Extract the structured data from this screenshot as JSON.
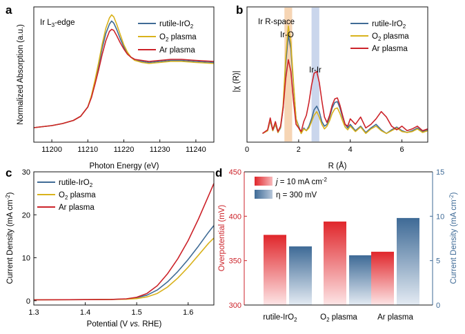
{
  "colors": {
    "rutile": "#3f6b95",
    "o2": "#d9b21b",
    "ar": "#cc2229",
    "bar_red": "#e0262b",
    "bar_blue": "#3e6a96",
    "band_orange": "#f3c79b",
    "band_blue": "#b8c8e6"
  },
  "chart_data": [
    {
      "panel": "a",
      "type": "line",
      "annotation": "Ir L3-edge",
      "xlabel": "Photon Energy (eV)",
      "ylabel": "Normalized Absorption (a.u.)",
      "xlim": [
        11195,
        11245
      ],
      "xticks": [
        11200,
        11210,
        11220,
        11230,
        11240
      ],
      "legend_position": "top-right",
      "series": [
        {
          "name": "rutile-IrO2",
          "color_key": "rutile",
          "x": [
            11195,
            11200,
            11203,
            11206,
            11208,
            11210,
            11211,
            11212,
            11213,
            11214,
            11215,
            11216,
            11216.6,
            11217.2,
            11218,
            11219,
            11220,
            11221,
            11222,
            11223,
            11225,
            11227,
            11230,
            11233,
            11236,
            11240,
            11245
          ],
          "y": [
            0.02,
            0.04,
            0.06,
            0.09,
            0.13,
            0.22,
            0.32,
            0.46,
            0.62,
            0.79,
            0.93,
            1.02,
            1.05,
            1.03,
            0.97,
            0.88,
            0.8,
            0.74,
            0.7,
            0.68,
            0.66,
            0.65,
            0.66,
            0.67,
            0.67,
            0.66,
            0.65
          ]
        },
        {
          "name": "O2 plasma",
          "color_key": "o2",
          "x": [
            11195,
            11200,
            11203,
            11206,
            11208,
            11210,
            11211,
            11212,
            11213,
            11214,
            11215,
            11216,
            11216.6,
            11217.2,
            11218,
            11219,
            11220,
            11221,
            11222,
            11223,
            11225,
            11227,
            11230,
            11233,
            11236,
            11240,
            11245
          ],
          "y": [
            0.02,
            0.04,
            0.06,
            0.09,
            0.13,
            0.22,
            0.33,
            0.48,
            0.65,
            0.83,
            0.98,
            1.08,
            1.11,
            1.09,
            1.02,
            0.92,
            0.82,
            0.75,
            0.7,
            0.67,
            0.65,
            0.64,
            0.65,
            0.66,
            0.66,
            0.65,
            0.64
          ]
        },
        {
          "name": "Ar plasma",
          "color_key": "ar",
          "x": [
            11195,
            11200,
            11203,
            11206,
            11208,
            11210,
            11211,
            11212,
            11213,
            11214,
            11215,
            11216,
            11216.6,
            11217.2,
            11218,
            11219,
            11220,
            11221,
            11222,
            11223,
            11225,
            11227,
            11230,
            11233,
            11236,
            11240,
            11245
          ],
          "y": [
            0.02,
            0.04,
            0.06,
            0.09,
            0.13,
            0.22,
            0.31,
            0.44,
            0.58,
            0.73,
            0.86,
            0.95,
            0.97,
            0.96,
            0.91,
            0.84,
            0.78,
            0.73,
            0.7,
            0.68,
            0.67,
            0.66,
            0.67,
            0.68,
            0.68,
            0.67,
            0.66
          ]
        }
      ]
    },
    {
      "panel": "b",
      "type": "line",
      "annotation": "Ir R-space",
      "peak_labels": [
        "Ir-O",
        "Ir-Ir"
      ],
      "xlabel": "R (Å)",
      "ylabel": "|χ (R)|",
      "xlim": [
        0,
        7
      ],
      "xticks": [
        0,
        2,
        4,
        6
      ],
      "bands": [
        {
          "x": [
            1.45,
            1.75
          ],
          "color_key": "band_orange"
        },
        {
          "x": [
            2.5,
            2.8
          ],
          "color_key": "band_blue"
        }
      ],
      "legend_position": "top-right",
      "series": [
        {
          "name": "rutile-IrO2",
          "color_key": "rutile",
          "x": [
            0.6,
            0.8,
            0.9,
            1.0,
            1.1,
            1.2,
            1.3,
            1.4,
            1.5,
            1.6,
            1.7,
            1.8,
            1.9,
            2.0,
            2.1,
            2.2,
            2.3,
            2.4,
            2.5,
            2.6,
            2.7,
            2.8,
            2.9,
            3.0,
            3.1,
            3.2,
            3.3,
            3.4,
            3.5,
            3.6,
            3.7,
            3.8,
            3.9,
            4.0,
            4.2,
            4.4,
            4.6,
            4.8,
            5.0,
            5.2,
            5.4,
            5.6,
            5.8,
            6.0,
            6.2,
            6.4,
            6.6,
            6.8,
            7.0
          ],
          "y": [
            0.02,
            0.05,
            0.16,
            0.05,
            0.12,
            0.03,
            0.08,
            0.3,
            0.78,
            1.1,
            0.95,
            0.55,
            0.18,
            0.1,
            0.02,
            0.08,
            0.05,
            0.1,
            0.18,
            0.28,
            0.32,
            0.26,
            0.15,
            0.1,
            0.12,
            0.2,
            0.3,
            0.36,
            0.37,
            0.3,
            0.2,
            0.12,
            0.08,
            0.12,
            0.05,
            0.1,
            0.03,
            0.08,
            0.12,
            0.06,
            0.02,
            0.06,
            0.09,
            0.05,
            0.03,
            0.05,
            0.08,
            0.04,
            0.06
          ]
        },
        {
          "name": "O2 plasma",
          "color_key": "o2",
          "x": [
            0.6,
            0.8,
            0.9,
            1.0,
            1.1,
            1.2,
            1.3,
            1.4,
            1.5,
            1.6,
            1.7,
            1.8,
            1.9,
            2.0,
            2.1,
            2.2,
            2.3,
            2.4,
            2.5,
            2.6,
            2.7,
            2.8,
            2.9,
            3.0,
            3.1,
            3.2,
            3.3,
            3.4,
            3.5,
            3.6,
            3.7,
            3.8,
            3.9,
            4.0,
            4.2,
            4.4,
            4.6,
            4.8,
            5.0,
            5.2,
            5.4,
            5.6,
            5.8,
            6.0,
            6.2,
            6.4,
            6.6,
            6.8,
            7.0
          ],
          "y": [
            0.02,
            0.05,
            0.17,
            0.05,
            0.13,
            0.03,
            0.09,
            0.33,
            0.85,
            1.2,
            1.02,
            0.58,
            0.18,
            0.08,
            0.02,
            0.07,
            0.05,
            0.08,
            0.15,
            0.22,
            0.26,
            0.2,
            0.12,
            0.07,
            0.1,
            0.16,
            0.24,
            0.29,
            0.3,
            0.24,
            0.16,
            0.09,
            0.06,
            0.1,
            0.04,
            0.09,
            0.02,
            0.07,
            0.1,
            0.05,
            0.02,
            0.05,
            0.08,
            0.04,
            0.03,
            0.04,
            0.07,
            0.03,
            0.05
          ]
        },
        {
          "name": "Ar plasma",
          "color_key": "ar",
          "x": [
            0.6,
            0.8,
            0.9,
            1.0,
            1.1,
            1.2,
            1.3,
            1.4,
            1.5,
            1.6,
            1.7,
            1.8,
            1.9,
            2.0,
            2.1,
            2.2,
            2.3,
            2.4,
            2.5,
            2.6,
            2.7,
            2.8,
            2.9,
            3.0,
            3.1,
            3.2,
            3.3,
            3.4,
            3.5,
            3.6,
            3.7,
            3.8,
            3.9,
            4.0,
            4.2,
            4.4,
            4.6,
            4.8,
            5.0,
            5.2,
            5.4,
            5.6,
            5.8,
            6.0,
            6.2,
            6.4,
            6.6,
            6.8,
            7.0
          ],
          "y": [
            0.02,
            0.06,
            0.19,
            0.06,
            0.15,
            0.04,
            0.1,
            0.3,
            0.62,
            0.83,
            0.7,
            0.38,
            0.12,
            0.08,
            0.04,
            0.15,
            0.22,
            0.36,
            0.55,
            0.68,
            0.7,
            0.58,
            0.38,
            0.2,
            0.14,
            0.22,
            0.33,
            0.4,
            0.41,
            0.33,
            0.22,
            0.12,
            0.1,
            0.18,
            0.12,
            0.2,
            0.08,
            0.12,
            0.18,
            0.26,
            0.2,
            0.1,
            0.06,
            0.1,
            0.05,
            0.07,
            0.1,
            0.05,
            0.07
          ]
        }
      ]
    },
    {
      "panel": "c",
      "type": "line",
      "xlabel": "Potential (V vs. RHE)",
      "ylabel": "Current Density (mA cm-2)",
      "xlim": [
        1.3,
        1.65
      ],
      "ylim": [
        -1,
        30
      ],
      "xticks": [
        1.3,
        1.4,
        1.5,
        1.6
      ],
      "yticks": [
        0,
        10,
        20,
        30
      ],
      "legend_position": "top-left",
      "series": [
        {
          "name": "rutile-IrO2",
          "color_key": "rutile",
          "x": [
            1.3,
            1.4,
            1.45,
            1.48,
            1.5,
            1.52,
            1.54,
            1.56,
            1.58,
            1.6,
            1.62,
            1.64,
            1.65
          ],
          "y": [
            0.2,
            0.25,
            0.3,
            0.4,
            0.7,
            1.3,
            2.5,
            4.4,
            6.8,
            9.6,
            12.7,
            16.0,
            17.5
          ]
        },
        {
          "name": "O2 plasma",
          "color_key": "o2",
          "x": [
            1.3,
            1.4,
            1.45,
            1.48,
            1.5,
            1.52,
            1.54,
            1.56,
            1.58,
            1.6,
            1.62,
            1.64,
            1.65
          ],
          "y": [
            0.2,
            0.25,
            0.3,
            0.35,
            0.5,
            0.9,
            1.7,
            3.2,
            5.3,
            7.8,
            10.6,
            13.4,
            14.6
          ]
        },
        {
          "name": "Ar plasma",
          "color_key": "ar",
          "x": [
            1.3,
            1.4,
            1.45,
            1.48,
            1.5,
            1.52,
            1.54,
            1.56,
            1.58,
            1.6,
            1.62,
            1.64,
            1.65
          ],
          "y": [
            0.2,
            0.25,
            0.3,
            0.45,
            0.8,
            1.7,
            3.5,
            6.3,
            9.8,
            14.0,
            19.0,
            24.5,
            27.3
          ]
        }
      ]
    },
    {
      "panel": "d",
      "type": "bar",
      "categories": [
        "rutile-IrO2",
        "O2 plasma",
        "Ar plasma"
      ],
      "ylabel_left": "Overpotential (mV)",
      "ylabel_right": "Current Density (mA cm-2)",
      "ylim_left": [
        300,
        450
      ],
      "ylim_right": [
        0,
        15
      ],
      "yticks_left": [
        300,
        350,
        400,
        450
      ],
      "yticks_right": [
        0,
        5,
        10,
        15
      ],
      "legend_position": "top-left",
      "series": [
        {
          "name": "j = 10 mA cm-2",
          "axis": "left",
          "color_key": "bar_red",
          "values": [
            379,
            394,
            360
          ]
        },
        {
          "name": "η = 300 mV",
          "axis": "right",
          "color_key": "bar_blue",
          "values": [
            6.6,
            5.6,
            9.8
          ]
        }
      ]
    }
  ]
}
